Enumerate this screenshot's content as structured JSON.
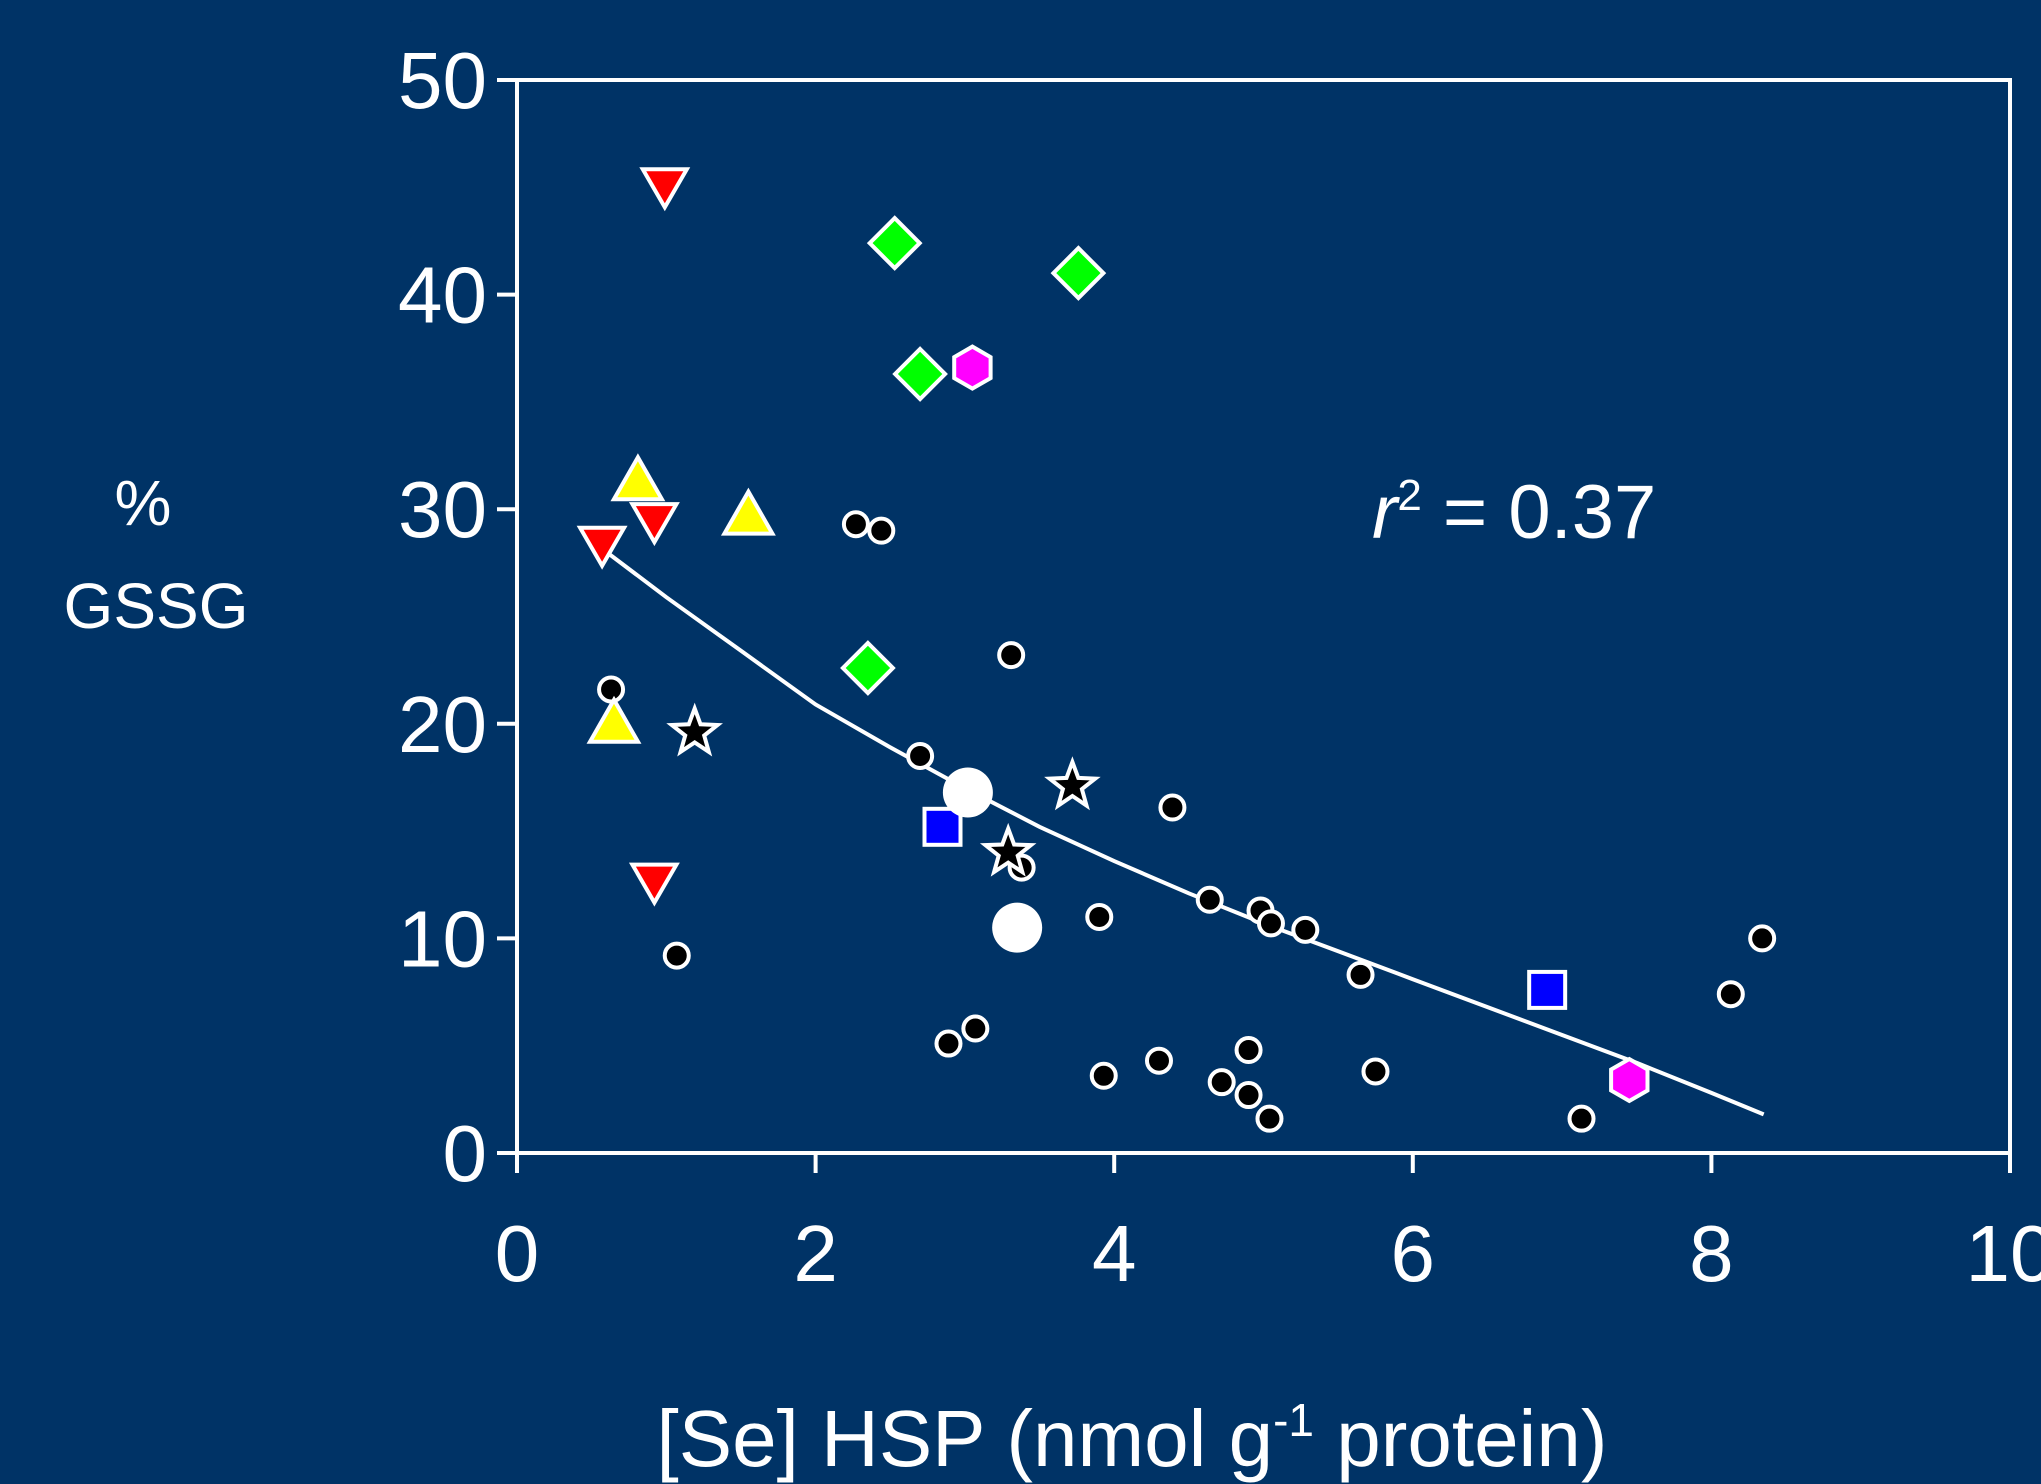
{
  "colors": {
    "background": "#003366",
    "axis": "#ffffff",
    "dot": "#000000",
    "red": "#ff0000",
    "yellow": "#ffff00",
    "green": "#00ff00",
    "magenta": "#ff00ff",
    "blue": "#0000ff",
    "white": "#ffffff"
  },
  "chart_data": {
    "type": "scatter",
    "title": "",
    "ylabel_line1": "%",
    "ylabel_line2": "GSSG",
    "xlabel_main": "[Se] HSP (nmol g",
    "xlabel_sup": "-1",
    "xlabel_end": " protein)",
    "annotation": {
      "r": "r",
      "sup": "2",
      "rest": " = 0.37"
    },
    "xlim": [
      0,
      10
    ],
    "ylim": [
      0,
      50
    ],
    "xticks": [
      0,
      2,
      4,
      6,
      8,
      10
    ],
    "yticks": [
      0,
      10,
      20,
      30,
      40,
      50
    ],
    "grid": false,
    "series": [
      {
        "marker": "dot",
        "color": "#000000",
        "points": [
          [
            0.63,
            21.6
          ],
          [
            1.07,
            9.2
          ],
          [
            2.27,
            29.3
          ],
          [
            2.44,
            29.0
          ],
          [
            2.7,
            18.5
          ],
          [
            2.89,
            5.1
          ],
          [
            3.07,
            5.8
          ],
          [
            3.31,
            23.2
          ],
          [
            3.38,
            13.3
          ],
          [
            3.9,
            11.0
          ],
          [
            3.93,
            3.6
          ],
          [
            4.3,
            4.3
          ],
          [
            4.39,
            16.1
          ],
          [
            4.64,
            11.8
          ],
          [
            4.72,
            3.3
          ],
          [
            4.9,
            4.8
          ],
          [
            4.9,
            2.7
          ],
          [
            4.98,
            11.3
          ],
          [
            5.05,
            10.7
          ],
          [
            5.04,
            1.6
          ],
          [
            5.28,
            10.4
          ],
          [
            5.65,
            8.3
          ],
          [
            5.75,
            3.8
          ],
          [
            7.13,
            1.6
          ],
          [
            8.13,
            7.4
          ],
          [
            8.34,
            10.0
          ]
        ]
      },
      {
        "marker": "triangle-down",
        "color": "#ff0000",
        "points": [
          [
            0.99,
            45.0
          ],
          [
            0.57,
            28.3
          ],
          [
            0.92,
            29.4
          ],
          [
            0.92,
            12.6
          ]
        ]
      },
      {
        "marker": "triangle-up",
        "color": "#ffff00",
        "points": [
          [
            0.81,
            31.3
          ],
          [
            1.55,
            29.7
          ],
          [
            0.65,
            20.0
          ]
        ]
      },
      {
        "marker": "diamond",
        "color": "#00ff00",
        "points": [
          [
            2.53,
            42.4
          ],
          [
            3.76,
            41.0
          ],
          [
            2.7,
            36.3
          ],
          [
            2.35,
            22.6
          ]
        ]
      },
      {
        "marker": "hexagon",
        "color": "#ff00ff",
        "points": [
          [
            3.05,
            36.6
          ],
          [
            7.45,
            3.4
          ]
        ]
      },
      {
        "marker": "square",
        "color": "#0000ff",
        "points": [
          [
            2.85,
            15.2
          ],
          [
            6.9,
            7.6
          ]
        ]
      },
      {
        "marker": "circle",
        "color": "#ffffff",
        "points": [
          [
            3.02,
            16.8
          ],
          [
            3.35,
            10.5
          ]
        ]
      },
      {
        "marker": "star",
        "color": "#000000",
        "points": [
          [
            1.19,
            19.6
          ],
          [
            3.72,
            17.1
          ],
          [
            3.29,
            14.0
          ]
        ]
      }
    ],
    "fit_line": {
      "x": [
        0.6,
        1.0,
        1.5,
        2.0,
        2.5,
        3.0,
        3.5,
        4.0,
        4.5,
        5.0,
        5.5,
        6.0,
        6.5,
        7.0,
        7.5,
        8.0,
        8.35
      ],
      "y": [
        28.0,
        25.9,
        23.4,
        20.9,
        18.9,
        17.0,
        15.2,
        13.6,
        12.1,
        10.7,
        9.4,
        8.1,
        6.8,
        5.5,
        4.2,
        2.8,
        1.8
      ]
    }
  }
}
